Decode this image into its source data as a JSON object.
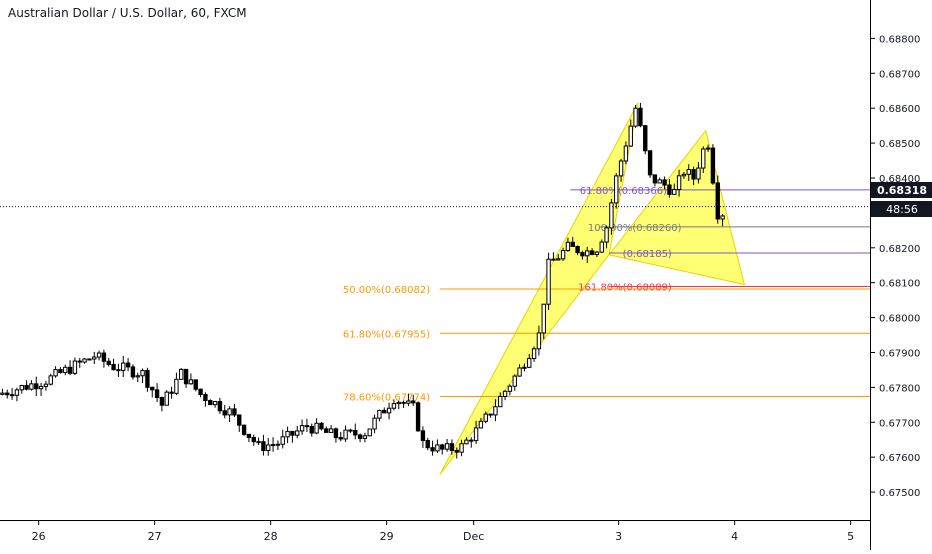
{
  "header": {
    "title": "Australian Dollar / U.S. Dollar, 60, FXCM"
  },
  "price_badge": {
    "value": "0.68318",
    "countdown": "48:56"
  },
  "colors": {
    "up": "#ffffff",
    "down": "#000000",
    "outline": "#000000",
    "pattern_fill": "#ffff00",
    "fib_orange": "#ff9800",
    "fib_purple": "#7e57c2",
    "fib_red": "#f23645",
    "fib_gray": "#787b86",
    "axis_text": "#131722",
    "grid": "#e0e3eb"
  },
  "chart_data": {
    "type": "candlestick",
    "title": "Australian Dollar / U.S. Dollar, 60, FXCM",
    "ylim": [
      0.6742,
      0.6891
    ],
    "xlim": [
      0,
      180
    ],
    "y_ticks": [
      "0.67500",
      "0.67600",
      "0.67700",
      "0.67800",
      "0.67900",
      "0.68000",
      "0.68100",
      "0.68200",
      "0.68300",
      "0.68400",
      "0.68500",
      "0.68600",
      "0.68700",
      "0.68800"
    ],
    "x_ticks": [
      {
        "label": "26",
        "x": 8
      },
      {
        "label": "27",
        "x": 32
      },
      {
        "label": "28",
        "x": 56
      },
      {
        "label": "29",
        "x": 80
      },
      {
        "label": "Dec",
        "x": 98
      },
      {
        "label": "3",
        "x": 128
      },
      {
        "label": "4",
        "x": 152
      },
      {
        "label": "5",
        "x": 176
      }
    ],
    "current_price": 0.68318,
    "anchors": [
      {
        "x": 0,
        "price": 0.6778
      },
      {
        "x": 10,
        "price": 0.6782
      },
      {
        "x": 20,
        "price": 0.6789
      },
      {
        "x": 24,
        "price": 0.6786
      },
      {
        "x": 30,
        "price": 0.6784
      },
      {
        "x": 34,
        "price": 0.6775
      },
      {
        "x": 38,
        "price": 0.6784
      },
      {
        "x": 42,
        "price": 0.6778
      },
      {
        "x": 48,
        "price": 0.6773
      },
      {
        "x": 54,
        "price": 0.6763
      },
      {
        "x": 58,
        "price": 0.6764
      },
      {
        "x": 64,
        "price": 0.6769
      },
      {
        "x": 70,
        "price": 0.6766
      },
      {
        "x": 76,
        "price": 0.6767
      },
      {
        "x": 82,
        "price": 0.6777
      },
      {
        "x": 86,
        "price": 0.6774
      },
      {
        "x": 88,
        "price": 0.6764
      },
      {
        "x": 92,
        "price": 0.6762
      },
      {
        "x": 96,
        "price": 0.6763
      },
      {
        "x": 100,
        "price": 0.6769
      },
      {
        "x": 104,
        "price": 0.6777
      },
      {
        "x": 108,
        "price": 0.6785
      },
      {
        "x": 112,
        "price": 0.6795
      },
      {
        "x": 114,
        "price": 0.6815
      },
      {
        "x": 118,
        "price": 0.682
      },
      {
        "x": 122,
        "price": 0.6819
      },
      {
        "x": 124,
        "price": 0.682
      },
      {
        "x": 126,
        "price": 0.6826
      },
      {
        "x": 128,
        "price": 0.684
      },
      {
        "x": 130,
        "price": 0.685
      },
      {
        "x": 132,
        "price": 0.686
      },
      {
        "x": 133,
        "price": 0.6854
      },
      {
        "x": 135,
        "price": 0.684
      },
      {
        "x": 138,
        "price": 0.6838
      },
      {
        "x": 140,
        "price": 0.6836
      },
      {
        "x": 142,
        "price": 0.6842
      },
      {
        "x": 144,
        "price": 0.684
      },
      {
        "x": 146,
        "price": 0.6848
      },
      {
        "x": 147,
        "price": 0.685
      },
      {
        "x": 148,
        "price": 0.684
      },
      {
        "x": 149,
        "price": 0.683
      }
    ],
    "harmonic_pattern": {
      "points": [
        {
          "x": 91,
          "price": 0.6755
        },
        {
          "x": 132,
          "price": 0.68615
        },
        {
          "x": 126,
          "price": 0.6818
        },
        {
          "x": 146,
          "price": 0.68535
        },
        {
          "x": 154,
          "price": 0.68095
        }
      ]
    },
    "fib_levels": [
      {
        "label": "61.80%(0.68366)",
        "price": 0.68366,
        "color": "#7e57c2"
      },
      {
        "label": "100.00%(0.68260)",
        "price": 0.6826,
        "color": "#787b86"
      },
      {
        "label": "(0.68185)",
        "price": 0.68185,
        "color": "#7e57c2"
      },
      {
        "label": "161.80%(0.68089)",
        "price": 0.68089,
        "color": "#f23645"
      },
      {
        "label": "50.00%(0.68082)",
        "price": 0.68082,
        "color": "#ff9800"
      },
      {
        "label": "61.80%(0.67955)",
        "price": 0.67955,
        "color": "#ff9800"
      },
      {
        "label": "78.60%(0.67774)",
        "price": 0.67774,
        "color": "#ff9800"
      }
    ]
  }
}
